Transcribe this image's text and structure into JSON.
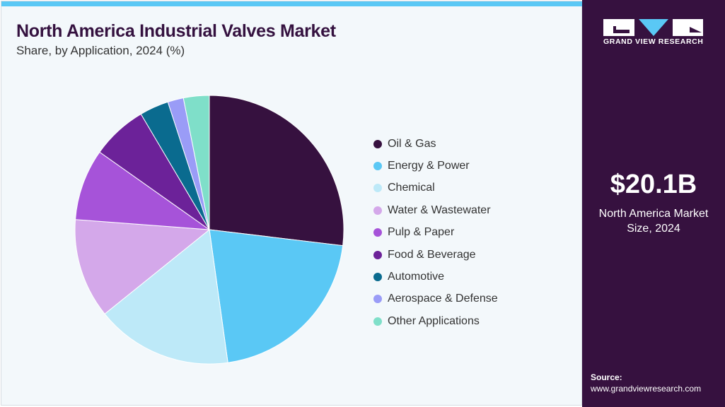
{
  "header": {
    "title": "North America Industrial Valves Market",
    "subtitle": "Share, by Application, 2024 (%)"
  },
  "sidebar": {
    "brand": "GRAND VIEW RESEARCH",
    "market_size": "$20.1B",
    "market_label_1": "North America Market",
    "market_label_2": "Size, 2024",
    "source_label": "Source:",
    "source_url": "www.grandviewresearch.com"
  },
  "chart_data": {
    "type": "pie",
    "title": "North America Industrial Valves Market",
    "subtitle": "Share, by Application, 2024 (%)",
    "legend_position": "right",
    "categories": [
      "Oil & Gas",
      "Energy & Power",
      "Chemical",
      "Water & Wastewater",
      "Pulp & Paper",
      "Food & Beverage",
      "Automotive",
      "Aerospace & Defense",
      "Other Applications"
    ],
    "values": [
      26.9,
      20.9,
      16.4,
      12.0,
      8.6,
      6.7,
      3.5,
      1.9,
      3.1
    ],
    "colors": [
      "#36113f",
      "#5ac8f5",
      "#bde9f8",
      "#d4a8ea",
      "#a653d9",
      "#6c2299",
      "#0a6b8f",
      "#9a9cf7",
      "#7fdfc9"
    ]
  }
}
